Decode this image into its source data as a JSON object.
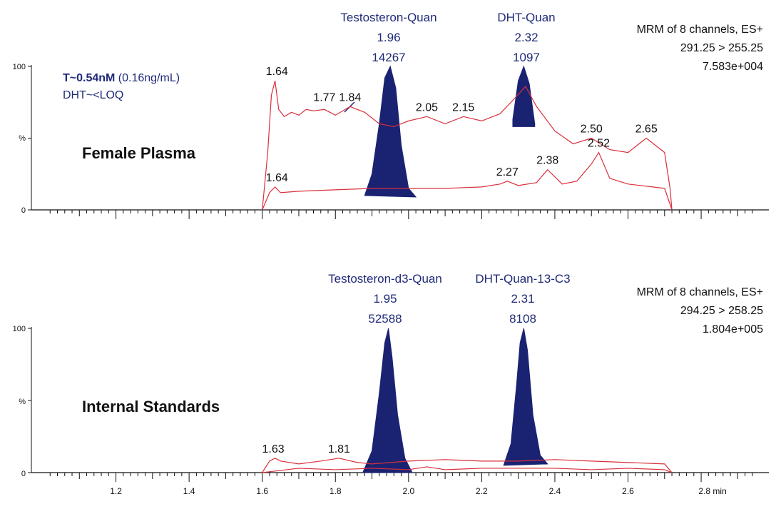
{
  "chart_data": [
    {
      "type": "line",
      "title": "Female Plasma",
      "annotation": {
        "line1_bold": "T~0.54nM",
        "line1_rest": " (0.16ng/mL)",
        "line2": "DHT~<LOQ"
      },
      "header": [
        "MRM of 8 channels, ES+",
        "291.25 > 255.25",
        "7.583e+004"
      ],
      "y_ticks": [
        "100",
        "%",
        "0"
      ],
      "ylim": [
        0,
        100
      ],
      "xlim": [
        1.0,
        2.95
      ],
      "filled_peaks": [
        {
          "name": "Testosteron-Quan",
          "rt": "1.96",
          "area": "14267",
          "x": [
            1.88,
            1.9,
            1.92,
            1.935,
            1.95,
            1.965,
            1.98,
            2.0,
            2.02
          ],
          "y": [
            10,
            25,
            60,
            92,
            100,
            85,
            45,
            15,
            9
          ]
        },
        {
          "name": "DHT-Quan",
          "rt": "2.32",
          "area": "1097",
          "x": [
            2.285,
            2.3,
            2.315,
            2.33,
            2.345,
            2.345,
            2.285
          ],
          "y": [
            63,
            90,
            100,
            88,
            60,
            58,
            58
          ]
        }
      ],
      "series": [
        {
          "x": [
            1.6,
            1.615,
            1.625,
            1.635,
            1.645,
            1.66,
            1.68,
            1.7,
            1.72,
            1.74,
            1.77,
            1.8,
            1.84,
            1.88,
            1.92,
            1.96,
            2.0,
            2.05,
            2.1,
            2.15,
            2.2,
            2.25,
            2.28,
            2.32,
            2.35,
            2.4,
            2.45,
            2.5,
            2.55,
            2.6,
            2.65,
            2.7,
            2.715,
            2.72
          ],
          "y": [
            0,
            40,
            80,
            90,
            70,
            65,
            68,
            66,
            70,
            69,
            70,
            66,
            72,
            68,
            60,
            58,
            62,
            65,
            60,
            65,
            62,
            67,
            75,
            86,
            72,
            55,
            46,
            50,
            42,
            40,
            50,
            40,
            15,
            0
          ],
          "peak_labels": [
            {
              "x": 1.64,
              "y": 90,
              "text": "1.64"
            },
            {
              "x": 1.77,
              "y": 72,
              "text": "1.77"
            },
            {
              "x": 1.84,
              "y": 72,
              "text": "1.84"
            },
            {
              "x": 2.05,
              "y": 65,
              "text": "2.05"
            },
            {
              "x": 2.15,
              "y": 65,
              "text": "2.15"
            },
            {
              "x": 2.5,
              "y": 50,
              "text": "2.50"
            },
            {
              "x": 2.65,
              "y": 50,
              "text": "2.65"
            }
          ]
        },
        {
          "x": [
            1.6,
            1.62,
            1.635,
            1.65,
            1.7,
            1.8,
            1.9,
            2.0,
            2.1,
            2.2,
            2.25,
            2.27,
            2.3,
            2.35,
            2.38,
            2.42,
            2.46,
            2.5,
            2.52,
            2.55,
            2.6,
            2.7,
            2.72
          ],
          "y": [
            0,
            12,
            16,
            12,
            13,
            14,
            15,
            15,
            15,
            16,
            18,
            20,
            17,
            19,
            28,
            18,
            20,
            32,
            40,
            22,
            18,
            15,
            0
          ],
          "peak_labels": [
            {
              "x": 1.64,
              "y": 16,
              "text": "1.64"
            },
            {
              "x": 2.27,
              "y": 20,
              "text": "2.27"
            },
            {
              "x": 2.38,
              "y": 28,
              "text": "2.38"
            },
            {
              "x": 2.52,
              "y": 40,
              "text": "2.52"
            }
          ]
        }
      ]
    },
    {
      "type": "line",
      "title": "Internal Standards",
      "header": [
        "MRM of 8 channels, ES+",
        "294.25 > 258.25",
        "1.804e+005"
      ],
      "y_ticks": [
        "100",
        "%",
        "0"
      ],
      "ylim": [
        0,
        100
      ],
      "xlim": [
        1.0,
        2.95
      ],
      "x_ticks": [
        "1.2",
        "1.4",
        "1.6",
        "1.8",
        "2.0",
        "2.2",
        "2.4",
        "2.6",
        "2.8 min"
      ],
      "x_tick_values": [
        1.2,
        1.4,
        1.6,
        1.8,
        2.0,
        2.2,
        2.4,
        2.6,
        2.8
      ],
      "filled_peaks": [
        {
          "name": "Testosteron-d3-Quan",
          "rt": "1.95",
          "area": "52588",
          "x": [
            1.875,
            1.9,
            1.92,
            1.935,
            1.945,
            1.955,
            1.97,
            1.99,
            2.01,
            1.875
          ],
          "y": [
            0,
            15,
            55,
            90,
            100,
            80,
            40,
            10,
            0,
            0
          ]
        },
        {
          "name": "DHT-Quan-13-C3",
          "rt": "2.31",
          "area": "8108",
          "x": [
            2.26,
            2.28,
            2.295,
            2.305,
            2.315,
            2.325,
            2.34,
            2.36,
            2.38,
            2.26
          ],
          "y": [
            5,
            20,
            60,
            90,
            100,
            85,
            40,
            12,
            6,
            5
          ]
        }
      ],
      "series": [
        {
          "x": [
            1.6,
            1.62,
            1.635,
            1.65,
            1.7,
            1.76,
            1.81,
            1.86,
            1.9,
            2.0,
            2.1,
            2.2,
            2.3,
            2.4,
            2.5,
            2.6,
            2.7,
            2.72
          ],
          "y": [
            0,
            8,
            10,
            8,
            6,
            8,
            10,
            7,
            6,
            8,
            9,
            8,
            8,
            9,
            8,
            7,
            6,
            0
          ],
          "peak_labels": [
            {
              "x": 1.63,
              "y": 10,
              "text": "1.63"
            },
            {
              "x": 1.81,
              "y": 10,
              "text": "1.81"
            }
          ]
        },
        {
          "x": [
            1.6,
            1.7,
            1.8,
            1.9,
            2.0,
            2.05,
            2.1,
            2.2,
            2.4,
            2.5,
            2.6,
            2.7,
            2.72
          ],
          "y": [
            0,
            3,
            2,
            3,
            2,
            4,
            2,
            3,
            3,
            2,
            3,
            2,
            0
          ],
          "peak_labels": []
        }
      ]
    }
  ],
  "colors": {
    "trace": "#d9303b",
    "peak_fill": "#1a2272",
    "peak_label": "#1f2a78",
    "axis": "#111111"
  }
}
